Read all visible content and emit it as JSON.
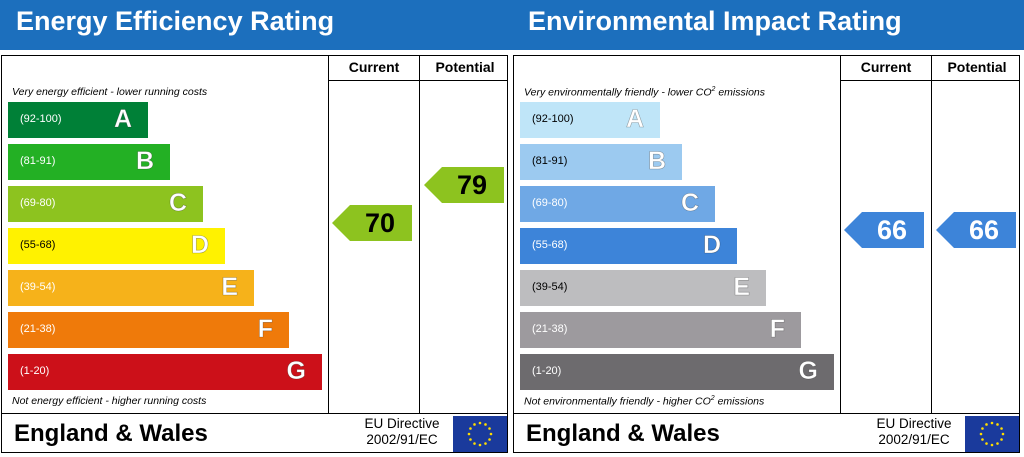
{
  "chart_data": [
    {
      "type": "bar",
      "title": "Energy Efficiency Rating",
      "column_headers": [
        "Current",
        "Potential"
      ],
      "top_note": "Very energy efficient - lower running costs",
      "bottom_note": "Not energy efficient - higher running costs",
      "bands": [
        {
          "letter": "A",
          "range": "(92-100)",
          "color": "#008037"
        },
        {
          "letter": "B",
          "range": "(81-91)",
          "color": "#23b024"
        },
        {
          "letter": "C",
          "range": "(69-80)",
          "color": "#8dc31f"
        },
        {
          "letter": "D",
          "range": "(55-68)",
          "color": "#fff200"
        },
        {
          "letter": "E",
          "range": "(39-54)",
          "color": "#f6b21a"
        },
        {
          "letter": "F",
          "range": "(21-38)",
          "color": "#ef7a0a"
        },
        {
          "letter": "G",
          "range": "(1-20)",
          "color": "#cc1019"
        }
      ],
      "current": {
        "value": 70,
        "label": "70",
        "band": "C",
        "color": "#8dc31f"
      },
      "potential": {
        "value": 79,
        "label": "79",
        "band": "C",
        "color": "#8dc31f"
      },
      "footer": "England & Wales",
      "directive_line1": "EU Directive",
      "directive_line2": "2002/91/EC"
    },
    {
      "type": "bar",
      "title": "Environmental Impact Rating",
      "column_headers": [
        "Current",
        "Potential"
      ],
      "top_note": "Very environmentally friendly - lower CO",
      "top_note_sup": "2",
      "top_note_end": " emissions",
      "bottom_note": "Not environmentally friendly - higher CO",
      "bottom_note_sup": "2",
      "bottom_note_end": " emissions",
      "bands": [
        {
          "letter": "A",
          "range": "(92-100)",
          "color": "#bfe5f8"
        },
        {
          "letter": "B",
          "range": "(81-91)",
          "color": "#9ccaf0"
        },
        {
          "letter": "C",
          "range": "(69-80)",
          "color": "#6fa8e5"
        },
        {
          "letter": "D",
          "range": "(55-68)",
          "color": "#3d84d9"
        },
        {
          "letter": "E",
          "range": "(39-54)",
          "color": "#bdbdbf"
        },
        {
          "letter": "F",
          "range": "(21-38)",
          "color": "#9d9a9e"
        },
        {
          "letter": "G",
          "range": "(1-20)",
          "color": "#6d6b6e"
        }
      ],
      "current": {
        "value": 66,
        "label": "66",
        "band": "D",
        "color": "#3d84d9"
      },
      "potential": {
        "value": 66,
        "label": "66",
        "band": "D",
        "color": "#3d84d9"
      },
      "footer": "England & Wales",
      "directive_line1": "EU Directive",
      "directive_line2": "2002/91/EC"
    }
  ],
  "colors": {
    "header": "#1c6fbd",
    "eu_flag": "#1a3a9c",
    "eu_stars": "#ffdd00"
  }
}
